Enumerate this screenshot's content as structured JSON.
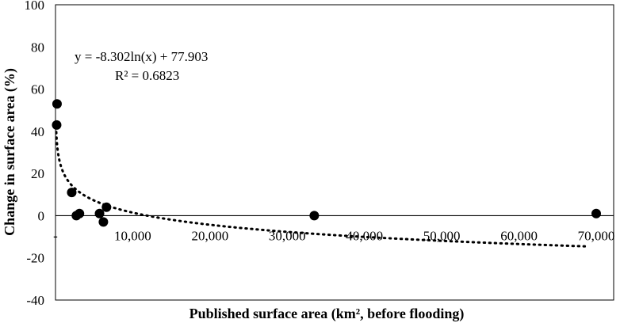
{
  "chart_data": {
    "type": "scatter",
    "xlabel": "Published surface area (km², before flooding)",
    "ylabel": "Change in surface area (%)",
    "xlim": [
      0,
      70000
    ],
    "ylim": [
      -40,
      100
    ],
    "x_ticks": [
      "-",
      "10,000",
      "20,000",
      "30,000",
      "40,000",
      "50,000",
      "60,000",
      "70,000"
    ],
    "y_ticks": [
      "100",
      "80",
      "60",
      "40",
      "20",
      "0",
      "-20",
      "-40"
    ],
    "grid": false,
    "legend": "none",
    "series": [
      {
        "points": [
          {
            "x": 200,
            "y": 53
          },
          {
            "x": 150,
            "y": 43
          },
          {
            "x": 2100,
            "y": 11
          },
          {
            "x": 2700,
            "y": 0
          },
          {
            "x": 3100,
            "y": 1
          },
          {
            "x": 5700,
            "y": 1
          },
          {
            "x": 6200,
            "y": -3
          },
          {
            "x": 6600,
            "y": 4
          },
          {
            "x": 33500,
            "y": 0
          },
          {
            "x": 70000,
            "y": 1
          }
        ]
      }
    ],
    "trendline": {
      "type": "logarithmic",
      "a": -8.302,
      "b": 77.903,
      "x_range": [
        100,
        69000
      ],
      "equation": "y = -8.302ln(x) + 77.903",
      "r_squared": "R² = 0.6823"
    },
    "colors": {
      "marker": "#000000",
      "axis": "#000000"
    }
  }
}
